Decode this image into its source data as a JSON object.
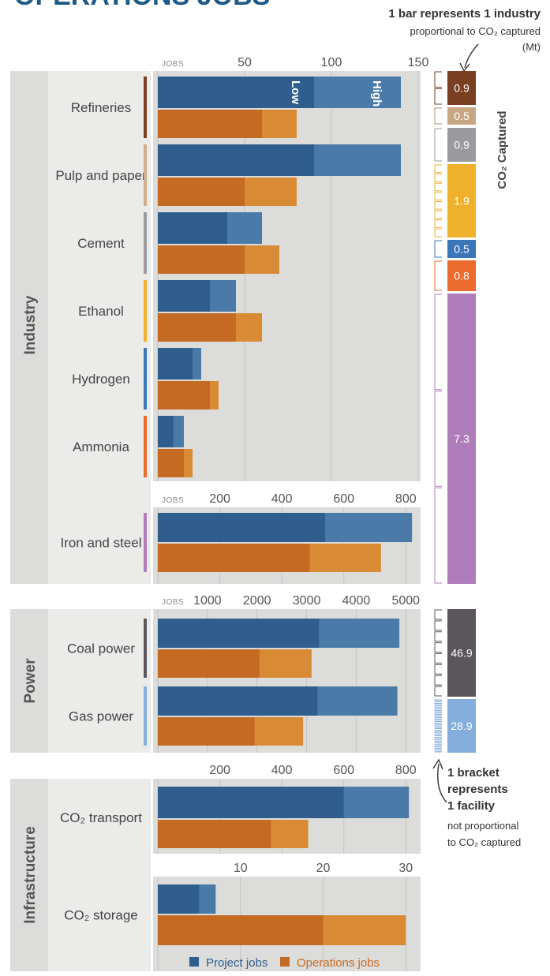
{
  "header": {
    "title": "OPERATIONS JOBS",
    "note_line1": "1 bar represents 1 industry",
    "note_line2": "proportional to CO₂ captured",
    "note_line3": "(Mt)"
  },
  "bracket_note": {
    "line1": "1 bracket",
    "line2": "represents",
    "line3": "1 facility",
    "line4": "not proportional",
    "line5": "to CO₂ captured"
  },
  "sections": [
    {
      "label": "Industry"
    },
    {
      "label": "Power"
    },
    {
      "label": "Infrastructure"
    }
  ],
  "jobs_label": "JOBS",
  "low_label": "Low",
  "high_label": "High",
  "co2_axis_label": "CO₂ Captured",
  "colors": {
    "project_low": "#2f5e8e",
    "project_high": "#4a7aa7",
    "ops_low": "#c46a23",
    "ops_high": "#d98a34",
    "panel_bg": "#dcdcdb",
    "title": "#1f5a86"
  },
  "chart_data": [
    {
      "type": "bar",
      "title": "",
      "xlabel": "JOBS",
      "xlim": [
        0,
        150
      ],
      "xticks": [
        50,
        100,
        150
      ],
      "categories": [
        "Refineries",
        "Pulp and paper",
        "Cement",
        "Ethanol",
        "Hydrogen",
        "Ammonia"
      ],
      "category_colors": [
        "#7a3f22",
        "#cfae8c",
        "#9b9a9e",
        "#efb02c",
        "#3b76b8",
        "#ea6b2c"
      ],
      "series": [
        {
          "name": "Project jobs",
          "low": [
            90,
            90,
            40,
            30,
            20,
            9
          ],
          "high": [
            140,
            140,
            60,
            45,
            25,
            15
          ]
        },
        {
          "name": "Operations jobs",
          "low": [
            60,
            50,
            50,
            45,
            30,
            15
          ],
          "high": [
            80,
            80,
            70,
            60,
            35,
            20
          ]
        }
      ]
    },
    {
      "type": "bar",
      "title": "",
      "xlabel": "JOBS",
      "xlim": [
        0,
        840
      ],
      "xticks": [
        200,
        400,
        600,
        800
      ],
      "categories": [
        "Iron and steel"
      ],
      "category_colors": [
        "#b07dbb"
      ],
      "series": [
        {
          "name": "Project jobs",
          "low": [
            540
          ],
          "high": [
            820
          ]
        },
        {
          "name": "Operations jobs",
          "low": [
            490
          ],
          "high": [
            720
          ]
        }
      ]
    },
    {
      "type": "bar",
      "title": "",
      "xlabel": "JOBS",
      "xlim": [
        0,
        5250
      ],
      "xticks": [
        1000,
        2000,
        3000,
        4000,
        5000
      ],
      "categories": [
        "Coal power",
        "Gas power"
      ],
      "category_colors": [
        "#5a565c",
        "#84aedc"
      ],
      "series": [
        {
          "name": "Project jobs",
          "low": [
            3250,
            3220
          ],
          "high": [
            4870,
            4830
          ]
        },
        {
          "name": "Operations jobs",
          "low": [
            2050,
            1950
          ],
          "high": [
            3100,
            2930
          ]
        }
      ]
    },
    {
      "type": "bar",
      "title": "",
      "xlabel": "",
      "xlim": [
        0,
        840
      ],
      "xticks": [
        200,
        400,
        600,
        800
      ],
      "categories": [
        "CO₂ transport"
      ],
      "category_colors": [],
      "series": [
        {
          "name": "Project jobs",
          "low": [
            600
          ],
          "high": [
            810
          ]
        },
        {
          "name": "Operations jobs",
          "low": [
            365
          ],
          "high": [
            485
          ]
        }
      ]
    },
    {
      "type": "bar",
      "title": "",
      "xlabel": "",
      "xlim": [
        0,
        31.5
      ],
      "xticks": [
        10,
        20,
        30
      ],
      "categories": [
        "CO₂ storage"
      ],
      "category_colors": [],
      "series": [
        {
          "name": "Project jobs",
          "low": [
            5
          ],
          "high": [
            7
          ]
        },
        {
          "name": "Operations jobs",
          "low": [
            20
          ],
          "high": [
            30
          ]
        }
      ]
    },
    {
      "type": "bar",
      "title": "",
      "xlabel": "CO₂ Captured",
      "unit": "Mt",
      "categories": [
        "Refineries",
        "Pulp and paper",
        "Cement",
        "Ethanol",
        "Hydrogen",
        "Ammonia",
        "Iron and steel",
        "Coal power",
        "Gas power"
      ],
      "values": [
        0.9,
        0.5,
        0.9,
        1.9,
        0.5,
        0.8,
        7.3,
        46.9,
        28.9
      ],
      "labels": [
        "0.9",
        "0.5",
        "0.9",
        "1.9",
        "0.5",
        "0.8",
        "7.3",
        "46.9",
        "28.9"
      ],
      "colors": [
        "#7a3f22",
        "#c9a683",
        "#9b9a9e",
        "#efb02c",
        "#3b76b8",
        "#ea6b2c",
        "#b07dbb",
        "#5a565c",
        "#84aedc"
      ]
    }
  ],
  "legend": [
    {
      "label": "Project jobs",
      "color": "#2f5e8e"
    },
    {
      "label": "Operations jobs",
      "color": "#c46a23"
    }
  ]
}
